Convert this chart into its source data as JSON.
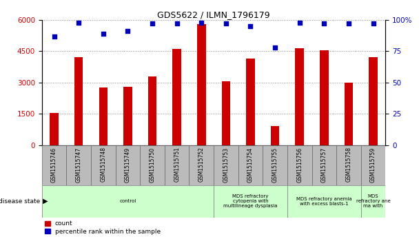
{
  "title": "GDS5622 / ILMN_1796179",
  "samples": [
    "GSM1515746",
    "GSM1515747",
    "GSM1515748",
    "GSM1515749",
    "GSM1515750",
    "GSM1515751",
    "GSM1515752",
    "GSM1515753",
    "GSM1515754",
    "GSM1515755",
    "GSM1515756",
    "GSM1515757",
    "GSM1515758",
    "GSM1515759"
  ],
  "counts": [
    1550,
    4200,
    2750,
    2800,
    3300,
    4600,
    5800,
    3050,
    4150,
    900,
    4650,
    4550,
    3000,
    4200
  ],
  "percentile_ranks": [
    87,
    98,
    89,
    91,
    97,
    97,
    98,
    97,
    95,
    78,
    98,
    97,
    97,
    97
  ],
  "ylim_left": [
    0,
    6000
  ],
  "ylim_right": [
    0,
    100
  ],
  "yticks_left": [
    0,
    1500,
    3000,
    4500,
    6000
  ],
  "yticks_right": [
    0,
    25,
    50,
    75,
    100
  ],
  "bar_color": "#cc0000",
  "dot_color": "#0000bb",
  "disease_groups": [
    {
      "label": "control",
      "start": 0,
      "end": 6
    },
    {
      "label": "MDS refractory\ncytopenia with\nmultilineage dysplasia",
      "start": 7,
      "end": 9
    },
    {
      "label": "MDS refractory anemia\nwith excess blasts-1",
      "start": 10,
      "end": 12
    },
    {
      "label": "MDS\nrefractory ane\nma with",
      "start": 13,
      "end": 13
    }
  ],
  "group_color": "#ccffcc",
  "bg_color": "#ffffff",
  "tick_bg_color": "#bbbbbb",
  "grid_color": "#888888"
}
